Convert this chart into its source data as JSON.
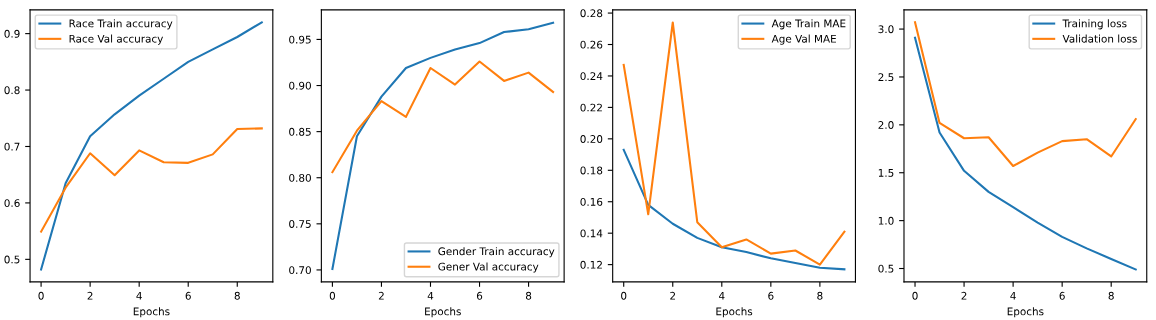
{
  "chart_data": [
    {
      "type": "line",
      "xlabel": "Epochs",
      "x": [
        0,
        1,
        2,
        3,
        4,
        5,
        6,
        7,
        8,
        9
      ],
      "xlim": [
        -0.45,
        9.45
      ],
      "xticks": [
        0,
        2,
        4,
        6,
        8
      ],
      "ylim": [
        0.46,
        0.942
      ],
      "yticks": [
        0.5,
        0.6,
        0.7,
        0.8,
        0.9
      ],
      "legend": "top left",
      "grid": false,
      "series": [
        {
          "name": "Race Train accuracy",
          "color": "#1f77b4",
          "values": [
            0.482,
            0.635,
            0.718,
            0.757,
            0.79,
            0.82,
            0.85,
            0.872,
            0.894,
            0.92
          ]
        },
        {
          "name": "Race Val accuracy",
          "color": "#ff7f0e",
          "values": [
            0.549,
            0.627,
            0.688,
            0.649,
            0.693,
            0.672,
            0.671,
            0.686,
            0.731,
            0.732
          ]
        }
      ]
    },
    {
      "type": "line",
      "xlabel": "Epochs",
      "x": [
        0,
        1,
        2,
        3,
        4,
        5,
        6,
        7,
        8,
        9
      ],
      "xlim": [
        -0.45,
        9.45
      ],
      "xticks": [
        0,
        2,
        4,
        6,
        8
      ],
      "ylim": [
        0.687,
        0.982
      ],
      "yticks": [
        {
          "value": 0.7,
          "label": "0.70"
        },
        {
          "value": 0.75,
          "label": "0.75"
        },
        {
          "value": 0.8,
          "label": "0.80"
        },
        {
          "value": 0.85,
          "label": "0.85"
        },
        {
          "value": 0.9,
          "label": "0.90"
        },
        {
          "value": 0.95,
          "label": "0.95"
        }
      ],
      "legend": "bottom right",
      "grid": false,
      "series": [
        {
          "name": "Gender Train accuracy",
          "color": "#1f77b4",
          "values": [
            0.701,
            0.845,
            0.888,
            0.919,
            0.93,
            0.939,
            0.946,
            0.958,
            0.961,
            0.968
          ]
        },
        {
          "name": "Gener Val accuracy",
          "color": "#ff7f0e",
          "values": [
            0.806,
            0.851,
            0.883,
            0.866,
            0.919,
            0.901,
            0.926,
            0.905,
            0.914,
            0.893
          ]
        }
      ]
    },
    {
      "type": "line",
      "xlabel": "Epochs",
      "x": [
        0,
        1,
        2,
        3,
        4,
        5,
        6,
        7,
        8,
        9
      ],
      "xlim": [
        -0.45,
        9.45
      ],
      "xticks": [
        0,
        2,
        4,
        6,
        8
      ],
      "ylim": [
        0.109,
        0.282
      ],
      "yticks": [
        {
          "value": 0.12,
          "label": "0.12"
        },
        {
          "value": 0.14,
          "label": "0.14"
        },
        {
          "value": 0.16,
          "label": "0.16"
        },
        {
          "value": 0.18,
          "label": "0.18"
        },
        {
          "value": 0.2,
          "label": "0.20"
        },
        {
          "value": 0.22,
          "label": "0.22"
        },
        {
          "value": 0.24,
          "label": "0.24"
        },
        {
          "value": 0.26,
          "label": "0.26"
        },
        {
          "value": 0.28,
          "label": "0.28"
        }
      ],
      "legend": "top right",
      "grid": false,
      "series": [
        {
          "name": "Age Train MAE",
          "color": "#1f77b4",
          "values": [
            0.193,
            0.158,
            0.146,
            0.137,
            0.131,
            0.128,
            0.124,
            0.121,
            0.118,
            0.117
          ]
        },
        {
          "name": "Age Val MAE",
          "color": "#ff7f0e",
          "values": [
            0.247,
            0.152,
            0.274,
            0.147,
            0.131,
            0.136,
            0.127,
            0.129,
            0.12,
            0.141
          ]
        }
      ]
    },
    {
      "type": "line",
      "xlabel": "Epochs",
      "x": [
        0,
        1,
        2,
        3,
        4,
        5,
        6,
        7,
        8,
        9
      ],
      "xlim": [
        -0.45,
        9.45
      ],
      "xticks": [
        0,
        2,
        4,
        6,
        8
      ],
      "ylim": [
        0.36,
        3.2
      ],
      "yticks": [
        {
          "value": 0.5,
          "label": "0.5"
        },
        {
          "value": 1.0,
          "label": "1.0"
        },
        {
          "value": 1.5,
          "label": "1.5"
        },
        {
          "value": 2.0,
          "label": "2.0"
        },
        {
          "value": 2.5,
          "label": "2.5"
        },
        {
          "value": 3.0,
          "label": "3.0"
        }
      ],
      "legend": "top right",
      "grid": false,
      "series": [
        {
          "name": "Training loss",
          "color": "#1f77b4",
          "values": [
            2.91,
            1.92,
            1.52,
            1.3,
            1.14,
            0.98,
            0.83,
            0.71,
            0.6,
            0.49
          ]
        },
        {
          "name": "Validation loss",
          "color": "#ff7f0e",
          "values": [
            3.07,
            2.02,
            1.86,
            1.87,
            1.57,
            1.71,
            1.83,
            1.85,
            1.67,
            2.06
          ]
        }
      ]
    }
  ]
}
